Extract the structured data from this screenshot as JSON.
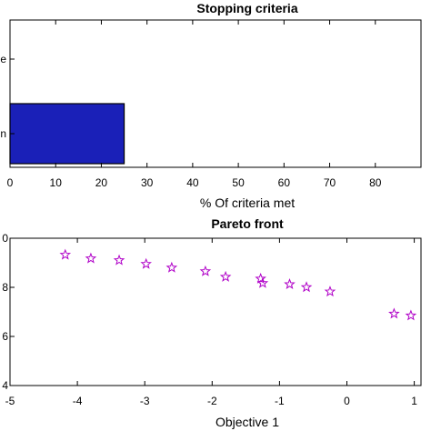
{
  "chart_data": [
    {
      "type": "bar",
      "orientation": "horizontal",
      "title": "Stopping criteria",
      "xlabel": "% Of criteria met",
      "ylabel": "",
      "categories": [
        "e",
        "n"
      ],
      "values": [
        0,
        25
      ],
      "xlim": [
        0,
        90
      ],
      "xticks": [
        "0",
        "10",
        "20",
        "30",
        "40",
        "50",
        "60",
        "70",
        "80"
      ],
      "bar_color": "#1a20b8",
      "grid": false
    },
    {
      "type": "scatter",
      "title": "Pareto front",
      "xlabel": "Objective 1",
      "ylabel": "",
      "xlim": [
        -5,
        1.1
      ],
      "ylim": [
        -4,
        0
      ],
      "xticks": [
        "-5",
        "-4",
        "-3",
        "-2",
        "-1",
        "0",
        "1"
      ],
      "yticks": [
        "0",
        "8",
        "6",
        "4"
      ],
      "marker": "star",
      "marker_color": "#b000c8",
      "grid": false,
      "points": [
        {
          "x": -4.18,
          "y": -0.45
        },
        {
          "x": -3.8,
          "y": -0.55
        },
        {
          "x": -3.38,
          "y": -0.6
        },
        {
          "x": -2.98,
          "y": -0.7
        },
        {
          "x": -2.6,
          "y": -0.8
        },
        {
          "x": -2.1,
          "y": -0.9
        },
        {
          "x": -1.8,
          "y": -1.05
        },
        {
          "x": -1.28,
          "y": -1.1
        },
        {
          "x": -1.25,
          "y": -1.22
        },
        {
          "x": -0.85,
          "y": -1.25
        },
        {
          "x": -0.6,
          "y": -1.33
        },
        {
          "x": -0.25,
          "y": -1.45
        },
        {
          "x": 0.7,
          "y": -2.05
        },
        {
          "x": 0.95,
          "y": -2.1
        }
      ]
    }
  ]
}
